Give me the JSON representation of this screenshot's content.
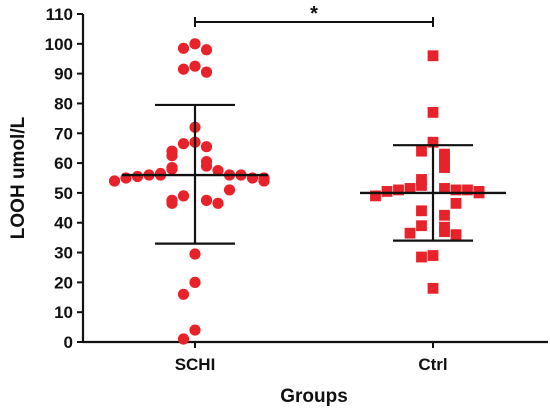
{
  "chart_data": {
    "type": "scatter",
    "title": "",
    "xlabel": "Groups",
    "ylabel": "LOOH umol/L",
    "ylim": [
      0,
      110
    ],
    "y_ticks": [
      0,
      10,
      20,
      30,
      40,
      50,
      60,
      70,
      80,
      90,
      100,
      110
    ],
    "categories": [
      "SCHI",
      "Ctrl"
    ],
    "grid": false,
    "legend": "none",
    "series": [
      {
        "category": "SCHI",
        "marker": "circle",
        "color": "#e8222a",
        "values": [
          100,
          98.5,
          98,
          92.5,
          91.5,
          90.5,
          72,
          67,
          66.5,
          65.5,
          64,
          62.5,
          60.5,
          59,
          58.5,
          58,
          57.5,
          56.5,
          56,
          56,
          56,
          56,
          55.5,
          55,
          55,
          55,
          54.5,
          54,
          54,
          51,
          49,
          47.5,
          47.5,
          46.5,
          46.5,
          29.5,
          20,
          16,
          4,
          1
        ],
        "mean": 56,
        "sd_upper": 79.5,
        "sd_lower": 33
      },
      {
        "category": "Ctrl",
        "marker": "square",
        "color": "#e8222a",
        "values": [
          96,
          77,
          67,
          64,
          63,
          62,
          59.5,
          58.5,
          54.5,
          52.5,
          51.5,
          51.5,
          51,
          51,
          51,
          50.5,
          50.5,
          50,
          49,
          46.5,
          44,
          42.5,
          39,
          38.5,
          37,
          36.5,
          36,
          29,
          28.5,
          18
        ],
        "mean": 50,
        "sd_upper": 66,
        "sd_lower": 34
      }
    ],
    "annotations": [
      {
        "text": "*",
        "between": [
          "SCHI",
          "Ctrl"
        ]
      }
    ]
  }
}
